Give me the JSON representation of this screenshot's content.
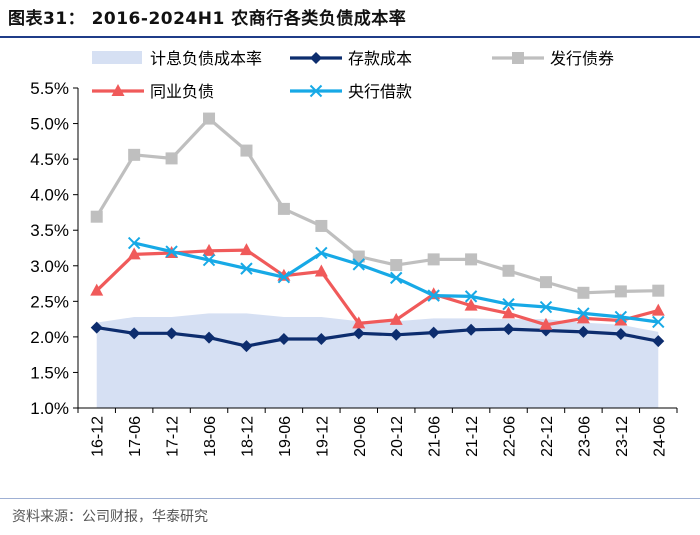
{
  "title": "图表31： 2016-2024H1 农商行各类负债成本率",
  "source": "资料来源：公司财报，华泰研究",
  "chart_data": {
    "type": "line",
    "ylim": [
      1.0,
      5.5
    ],
    "yticks": [
      "1.0%",
      "1.5%",
      "2.0%",
      "2.5%",
      "3.0%",
      "3.5%",
      "4.0%",
      "4.5%",
      "5.0%",
      "5.5%"
    ],
    "categories": [
      "16-12",
      "17-06",
      "17-12",
      "18-06",
      "18-12",
      "19-06",
      "19-12",
      "20-06",
      "20-12",
      "21-06",
      "21-12",
      "22-06",
      "22-12",
      "23-06",
      "23-12",
      "24-06"
    ],
    "series": [
      {
        "name": "计息负债成本率",
        "kind": "area",
        "color": "#d6e0f3",
        "values": [
          2.2,
          2.28,
          2.28,
          2.33,
          2.33,
          2.28,
          2.28,
          2.22,
          2.22,
          2.26,
          2.26,
          2.25,
          2.25,
          2.2,
          2.17,
          2.07
        ]
      },
      {
        "name": "存款成本",
        "kind": "line",
        "marker": "diamond",
        "color": "#0d2d6e",
        "values": [
          2.13,
          2.05,
          2.05,
          1.99,
          1.87,
          1.97,
          1.97,
          2.05,
          2.03,
          2.06,
          2.1,
          2.11,
          2.09,
          2.07,
          2.04,
          1.94
        ]
      },
      {
        "name": "发行债券",
        "kind": "line",
        "marker": "square",
        "color": "#bfbfbf",
        "values": [
          3.69,
          4.56,
          4.51,
          5.07,
          4.62,
          3.8,
          3.56,
          3.13,
          3.01,
          3.09,
          3.09,
          2.93,
          2.77,
          2.62,
          2.64,
          2.65
        ]
      },
      {
        "name": "同业负债",
        "kind": "line",
        "marker": "triangle",
        "color": "#f05a5a",
        "values": [
          2.65,
          3.16,
          3.18,
          3.21,
          3.22,
          2.86,
          2.92,
          2.19,
          2.24,
          2.6,
          2.44,
          2.33,
          2.17,
          2.26,
          2.23,
          2.37
        ]
      },
      {
        "name": "央行借款",
        "kind": "line",
        "marker": "x",
        "color": "#17a9e6",
        "values": [
          null,
          3.32,
          3.2,
          3.08,
          2.96,
          2.84,
          3.18,
          3.02,
          2.83,
          2.58,
          2.57,
          2.46,
          2.42,
          2.33,
          2.28,
          2.21
        ]
      }
    ]
  }
}
